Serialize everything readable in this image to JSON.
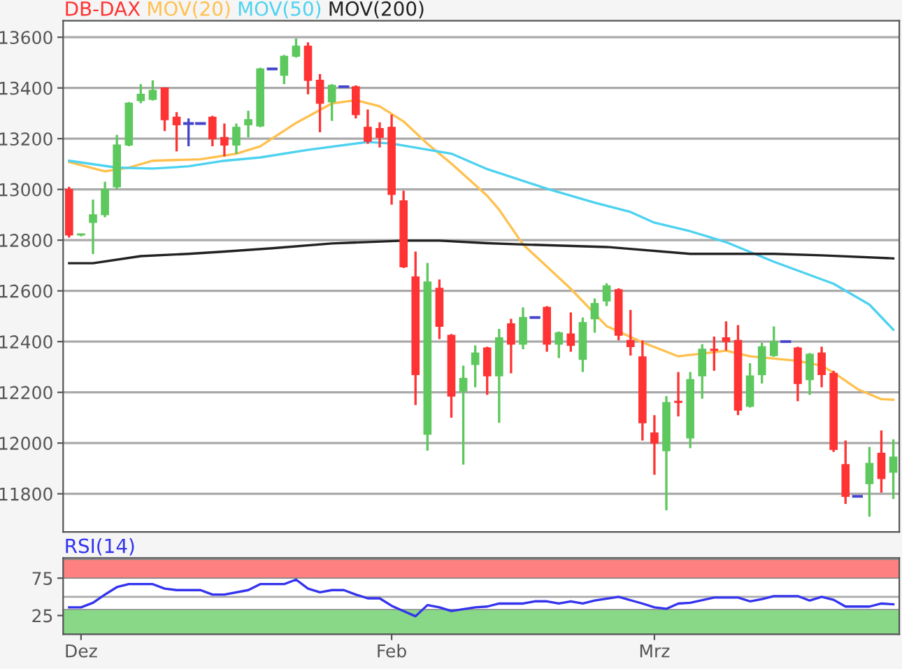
{
  "chart_data": [
    {
      "type": "candlestick",
      "categories": [
        null,
        null,
        null,
        null,
        null,
        null,
        null,
        null,
        null,
        null,
        null,
        null,
        null,
        null,
        null,
        null,
        null,
        null,
        null,
        null,
        null,
        null,
        null,
        null,
        null,
        null,
        null,
        null,
        null,
        null,
        null,
        null,
        null,
        null,
        null,
        null,
        null,
        null,
        null,
        null,
        null,
        null,
        null,
        null,
        null,
        null,
        null,
        null,
        null,
        null,
        null,
        null,
        null,
        null,
        null,
        null,
        null,
        null,
        null,
        null,
        null,
        null,
        null,
        null,
        null,
        null,
        null,
        null,
        null,
        null
      ],
      "series": [
        {
          "name": "DB-DAX",
          "type": "candlestick",
          "color": "#ff3333",
          "ohlc": [
            [
              13000,
              13010,
              12810,
              12820
            ],
            [
              12820,
              12825,
              12815,
              12825
            ],
            [
              12870,
              12960,
              12745,
              12900
            ],
            [
              12900,
              13030,
              12890,
              13000
            ],
            [
              13010,
              13215,
              13000,
              13175
            ],
            [
              13175,
              13345,
              13170,
              13340
            ],
            [
              13350,
              13415,
              13340,
              13375
            ],
            [
              13355,
              13430,
              13350,
              13390
            ],
            [
              13400,
              13400,
              13230,
              13275
            ],
            [
              13285,
              13305,
              13150,
              13255
            ],
            [
              13260,
              13280,
              13170,
              13260
            ],
            [
              13260,
              13260,
              13260,
              13260
            ],
            [
              13285,
              13290,
              13170,
              13200
            ],
            [
              13205,
              13260,
              13130,
              13175
            ],
            [
              13175,
              13260,
              13140,
              13245
            ],
            [
              13255,
              13310,
              13205,
              13275
            ],
            [
              13250,
              13480,
              13245,
              13475
            ],
            [
              13475,
              13475,
              13475,
              13475
            ],
            [
              13450,
              13530,
              13415,
              13525
            ],
            [
              13525,
              13595,
              13520,
              13565
            ],
            [
              13565,
              13580,
              13375,
              13430
            ],
            [
              13430,
              13455,
              13225,
              13340
            ],
            [
              13345,
              13415,
              13270,
              13410
            ],
            [
              13405,
              13405,
              13405,
              13405
            ],
            [
              13405,
              13410,
              13280,
              13295
            ],
            [
              13245,
              13315,
              13180,
              13190
            ],
            [
              13240,
              13265,
              13165,
              13205
            ],
            [
              13245,
              13295,
              12940,
              12980
            ],
            [
              12955,
              12995,
              12690,
              12695
            ],
            [
              12655,
              12755,
              12150,
              12270
            ],
            [
              12035,
              12710,
              11970,
              12635
            ],
            [
              12610,
              12645,
              12410,
              12460
            ],
            [
              12425,
              12430,
              12100,
              12185
            ],
            [
              12205,
              12305,
              11915,
              12255
            ],
            [
              12310,
              12385,
              12220,
              12355
            ],
            [
              12375,
              12380,
              12190,
              12265
            ],
            [
              12265,
              12450,
              12080,
              12415
            ],
            [
              12470,
              12490,
              12275,
              12390
            ],
            [
              12390,
              12535,
              12370,
              12495
            ],
            [
              12495,
              12495,
              12495,
              12495
            ],
            [
              12535,
              12540,
              12360,
              12390
            ],
            [
              12390,
              12440,
              12335,
              12435
            ],
            [
              12430,
              12515,
              12360,
              12385
            ],
            [
              12330,
              12495,
              12280,
              12475
            ],
            [
              12490,
              12570,
              12435,
              12550
            ],
            [
              12560,
              12630,
              12540,
              12620
            ],
            [
              12605,
              12610,
              12405,
              12425
            ],
            [
              12405,
              12525,
              12345,
              12380
            ],
            [
              12340,
              12405,
              12010,
              12080
            ],
            [
              12040,
              12110,
              11875,
              12000
            ],
            [
              11970,
              12185,
              11735,
              12160
            ],
            [
              12165,
              12280,
              12105,
              12160
            ],
            [
              12020,
              12280,
              11980,
              12250
            ],
            [
              12265,
              12390,
              12175,
              12370
            ],
            [
              12370,
              12420,
              12285,
              12365
            ],
            [
              12415,
              12480,
              12365,
              12400
            ],
            [
              12405,
              12465,
              12110,
              12130
            ],
            [
              12145,
              12315,
              12140,
              12265
            ],
            [
              12270,
              12395,
              12235,
              12380
            ],
            [
              12345,
              12460,
              12340,
              12400
            ],
            [
              12400,
              12400,
              12400,
              12400
            ],
            [
              12375,
              12380,
              12165,
              12235
            ],
            [
              12250,
              12355,
              12190,
              12350
            ],
            [
              12355,
              12380,
              12220,
              12270
            ],
            [
              12275,
              12285,
              11965,
              11975
            ],
            [
              11915,
              12010,
              11760,
              11790
            ],
            [
              11790,
              11790,
              11790,
              11790
            ],
            [
              11840,
              11985,
              11710,
              11920
            ],
            [
              11960,
              12050,
              11805,
              11860
            ],
            [
              11885,
              12015,
              11780,
              11945
            ]
          ],
          "colors": [
            "#ff3333",
            "#5dc85d",
            "#5dc85d",
            "#5dc85d",
            "#5dc85d",
            "#5dc85d",
            "#5dc85d",
            "#5dc85d",
            "#ff3333",
            "#ff3333",
            "#4444cc",
            "#4444cc",
            "#ff3333",
            "#ff3333",
            "#5dc85d",
            "#5dc85d",
            "#5dc85d",
            "#4444cc",
            "#5dc85d",
            "#5dc85d",
            "#ff3333",
            "#ff3333",
            "#5dc85d",
            "#4444cc",
            "#ff3333",
            "#ff3333",
            "#ff3333",
            "#ff3333",
            "#ff3333",
            "#ff3333",
            "#5dc85d",
            "#ff3333",
            "#ff3333",
            "#5dc85d",
            "#5dc85d",
            "#ff3333",
            "#5dc85d",
            "#ff3333",
            "#5dc85d",
            "#4444cc",
            "#ff3333",
            "#5dc85d",
            "#ff3333",
            "#5dc85d",
            "#5dc85d",
            "#5dc85d",
            "#ff3333",
            "#ff3333",
            "#ff3333",
            "#ff3333",
            "#5dc85d",
            "#ff3333",
            "#5dc85d",
            "#5dc85d",
            "#ff3333",
            "#ff3333",
            "#ff3333",
            "#5dc85d",
            "#5dc85d",
            "#5dc85d",
            "#4444cc",
            "#ff3333",
            "#5dc85d",
            "#ff3333",
            "#ff3333",
            "#ff3333",
            "#4444cc",
            "#5dc85d",
            "#ff3333",
            "#5dc85d"
          ]
        },
        {
          "name": "MOV(20)",
          "type": "line",
          "color": "#ffc04d",
          "values": [
            13108,
            null,
            null,
            13071,
            null,
            13086,
            null,
            13113,
            null,
            null,
            null,
            13119,
            null,
            null,
            13141,
            null,
            13170,
            null,
            null,
            13262,
            null,
            null,
            13339,
            null,
            13352,
            null,
            13328,
            null,
            13268,
            null,
            13180,
            null,
            13102,
            null,
            null,
            12975,
            12920,
            null,
            12783,
            null,
            null,
            null,
            12608,
            null,
            null,
            12461,
            null,
            null,
            12397,
            null,
            null,
            12342,
            null,
            null,
            null,
            12364,
            null,
            12342,
            null,
            null,
            null,
            12324,
            null,
            12305,
            12278,
            null,
            12213,
            null,
            12173,
            12171
          ]
        },
        {
          "name": "MOV(50)",
          "type": "line",
          "color": "#4dd2f0",
          "values": [
            13113,
            null,
            null,
            null,
            13086,
            null,
            null,
            13082,
            null,
            null,
            13091,
            null,
            null,
            13113,
            null,
            null,
            13126,
            null,
            null,
            null,
            13156,
            null,
            null,
            null,
            null,
            13187,
            null,
            13181,
            null,
            null,
            null,
            null,
            13141,
            null,
            null,
            13080,
            null,
            null,
            null,
            null,
            13003,
            null,
            null,
            null,
            12948,
            null,
            null,
            12911,
            null,
            12869,
            null,
            null,
            12835,
            null,
            null,
            12792,
            null,
            null,
            null,
            12715,
            null,
            null,
            null,
            null,
            12628,
            null,
            null,
            12546,
            null,
            12447
          ]
        },
        {
          "name": "MOV(200)",
          "type": "line",
          "color": "#222222",
          "values": [
            12709,
            null,
            12709,
            null,
            null,
            null,
            12737,
            null,
            null,
            null,
            12746,
            null,
            null,
            12755,
            null,
            null,
            null,
            12768,
            null,
            null,
            null,
            null,
            12787,
            null,
            null,
            null,
            null,
            null,
            12798,
            null,
            null,
            12798,
            null,
            null,
            null,
            12788,
            null,
            null,
            12783,
            null,
            null,
            null,
            null,
            null,
            null,
            12773,
            null,
            null,
            null,
            null,
            null,
            null,
            12746,
            null,
            null,
            null,
            null,
            null,
            null,
            12746,
            null,
            null,
            null,
            12740,
            null,
            null,
            null,
            null,
            null,
            12728
          ]
        }
      ],
      "ylim": [
        11650,
        13665
      ],
      "yticks": [
        11800,
        12000,
        12200,
        12400,
        12600,
        12800,
        13000,
        13200,
        13400,
        13600
      ],
      "grid": "y",
      "legend": "top left"
    },
    {
      "type": "line",
      "categories": [
        null,
        "Dez",
        null,
        null,
        null,
        null,
        null,
        null,
        null,
        null,
        null,
        null,
        null,
        null,
        null,
        null,
        null,
        null,
        null,
        null,
        null,
        null,
        null,
        null,
        null,
        null,
        null,
        "Feb",
        null,
        null,
        null,
        null,
        null,
        null,
        null,
        null,
        null,
        null,
        null,
        null,
        null,
        null,
        null,
        null,
        null,
        null,
        null,
        null,
        null,
        "Mrz",
        null,
        null,
        null,
        null,
        null,
        null,
        null,
        null,
        null,
        null,
        null,
        null,
        null,
        null,
        null,
        null,
        null,
        null,
        null,
        null
      ],
      "series": [
        {
          "name": "RSI(14)",
          "color": "#3333ee",
          "values": [
            36,
            36,
            42,
            53,
            63,
            67,
            null,
            67,
            61,
            59,
            null,
            59,
            53,
            53,
            null,
            59,
            67,
            null,
            67,
            73,
            61,
            56,
            59,
            59,
            53,
            48,
            48,
            38,
            31,
            24,
            39,
            36,
            31,
            null,
            36,
            37,
            41,
            null,
            41,
            44,
            44,
            41,
            44,
            41,
            45,
            null,
            50,
            null,
            41,
            36,
            34,
            41,
            42,
            null,
            49,
            null,
            49,
            44,
            47,
            51,
            null,
            51,
            45,
            50,
            46,
            37,
            null,
            37,
            41,
            40
          ]
        }
      ],
      "ylim": [
        0,
        102
      ],
      "yticks": [
        25,
        75
      ],
      "bands": [
        {
          "axis": "y",
          "from": 75,
          "to": 100,
          "color": "#ff8080"
        },
        {
          "axis": "y",
          "from": 0,
          "to": 33,
          "color": "#88d888"
        }
      ],
      "ref_lines": [
        {
          "axis": "y",
          "value": 50,
          "color": "#aaaaaa"
        }
      ],
      "legend": "top left"
    }
  ]
}
